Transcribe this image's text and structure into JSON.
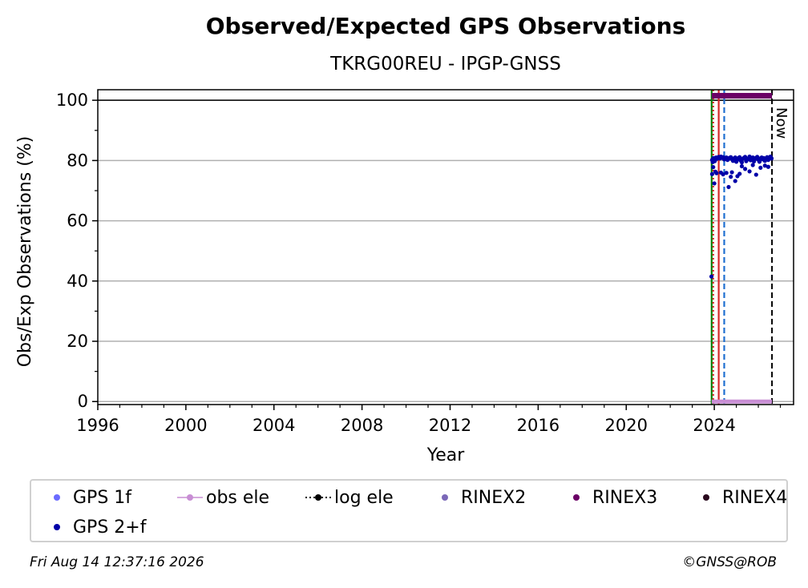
{
  "chart_data": {
    "type": "scatter",
    "title": "Observed/Expected GPS Observations",
    "subtitle": "TKRG00REU - IPGP-GNSS",
    "xlabel": "Year",
    "ylabel": "Obs/Exp Observations (%)",
    "xlim": [
      1996,
      2027.6
    ],
    "ylim": [
      -1,
      103.5
    ],
    "xticks": [
      1996,
      2000,
      2004,
      2008,
      2012,
      2016,
      2020,
      2024
    ],
    "yticks": [
      0,
      20,
      40,
      60,
      80,
      100
    ],
    "grid": "horizontal",
    "reference_line_y": 100,
    "now_label": "Now",
    "now_x": 2026.62,
    "vertical_lines": [
      {
        "x": 2023.88,
        "color": "#008000",
        "style": "solid"
      },
      {
        "x": 2023.95,
        "color": "#d62728",
        "style": "dotted"
      },
      {
        "x": 2024.2,
        "color": "#d62728",
        "style": "solid"
      },
      {
        "x": 2024.45,
        "color": "#1f6fd0",
        "style": "dashed"
      }
    ],
    "series": [
      {
        "name": "GPS 2+f",
        "color": "#0000a8",
        "x": [
          2023.9,
          2023.93,
          2023.96,
          2023.99,
          2024.02,
          2024.05,
          2024.08,
          2024.12,
          2024.16,
          2024.2,
          2024.25,
          2024.3,
          2024.35,
          2024.4,
          2024.45,
          2024.5,
          2024.55,
          2024.6,
          2024.65,
          2024.7,
          2024.75,
          2024.8,
          2024.85,
          2024.9,
          2024.95,
          2025.0,
          2025.05,
          2025.1,
          2025.15,
          2025.2,
          2025.25,
          2025.3,
          2025.35,
          2025.4,
          2025.45,
          2025.5,
          2025.55,
          2025.6,
          2025.65,
          2025.7,
          2025.75,
          2025.8,
          2025.85,
          2025.9,
          2025.95,
          2026.0,
          2026.05,
          2026.1,
          2026.15,
          2026.2,
          2026.25,
          2026.3,
          2026.35,
          2026.4,
          2026.45,
          2026.5,
          2026.55,
          2026.6,
          2023.9,
          2023.95,
          2024.0,
          2024.05,
          2024.1,
          2024.3,
          2024.4,
          2024.55,
          2024.65,
          2024.75,
          2024.8,
          2024.95,
          2025.05,
          2025.15,
          2025.25,
          2025.4,
          2025.6,
          2025.75,
          2025.9,
          2026.1,
          2026.3,
          2026.45,
          2023.87
        ],
        "values": [
          80.2,
          79.5,
          80.8,
          80.1,
          79.8,
          80.5,
          81.0,
          80.6,
          80.9,
          81.2,
          80.7,
          81.3,
          80.9,
          81.1,
          80.4,
          80.8,
          81.0,
          80.2,
          80.6,
          80.9,
          81.1,
          80.5,
          79.9,
          80.7,
          81.0,
          79.6,
          80.3,
          80.8,
          81.1,
          80.0,
          79.4,
          80.6,
          80.9,
          81.2,
          79.8,
          80.4,
          80.7,
          81.3,
          80.1,
          80.6,
          81.0,
          79.7,
          80.5,
          80.9,
          81.2,
          80.3,
          79.6,
          80.7,
          81.0,
          80.4,
          80.8,
          79.9,
          80.6,
          81.1,
          80.2,
          80.9,
          81.3,
          80.7,
          75.5,
          77.8,
          72.4,
          76.3,
          75.8,
          76.0,
          75.4,
          75.9,
          71.2,
          74.6,
          76.1,
          73.2,
          74.8,
          75.6,
          78.1,
          77.2,
          76.4,
          78.5,
          75.3,
          77.6,
          78.3,
          77.9,
          41.5
        ]
      },
      {
        "name": "GPS 1f",
        "color": "#6b6bff",
        "x": [],
        "values": []
      },
      {
        "name": "obs ele",
        "color": "#c88ed4",
        "x": [
          2023.88,
          2026.62
        ],
        "values": [
          0,
          0
        ]
      },
      {
        "name": "log ele",
        "color": "#000000",
        "x": [],
        "values": []
      },
      {
        "name": "RINEX2",
        "color": "#7b68b8",
        "x": [],
        "values": []
      },
      {
        "name": "RINEX3",
        "color": "#6b0066",
        "x": [
          2023.88,
          2026.62
        ],
        "values": [
          101.5,
          101.5
        ]
      },
      {
        "name": "RINEX4",
        "color": "#2a0a1e",
        "x": [],
        "values": []
      }
    ]
  },
  "legend": {
    "items": [
      {
        "label": "GPS 1f",
        "color": "#6b6bff",
        "marker": "dot"
      },
      {
        "label": "obs ele",
        "color": "#c88ed4",
        "marker": "line-dot"
      },
      {
        "label": "log ele",
        "color": "#000000",
        "marker": "dotted-line-dot"
      },
      {
        "label": "RINEX2",
        "color": "#7b68b8",
        "marker": "dot"
      },
      {
        "label": "RINEX3",
        "color": "#6b0066",
        "marker": "dot"
      },
      {
        "label": "RINEX4",
        "color": "#2a0a1e",
        "marker": "dot"
      },
      {
        "label": "GPS 2+f",
        "color": "#0000a8",
        "marker": "dot"
      }
    ]
  },
  "footer": {
    "timestamp": "Fri Aug 14 12:37:16 2026",
    "credit": "©GNSS@ROB"
  }
}
